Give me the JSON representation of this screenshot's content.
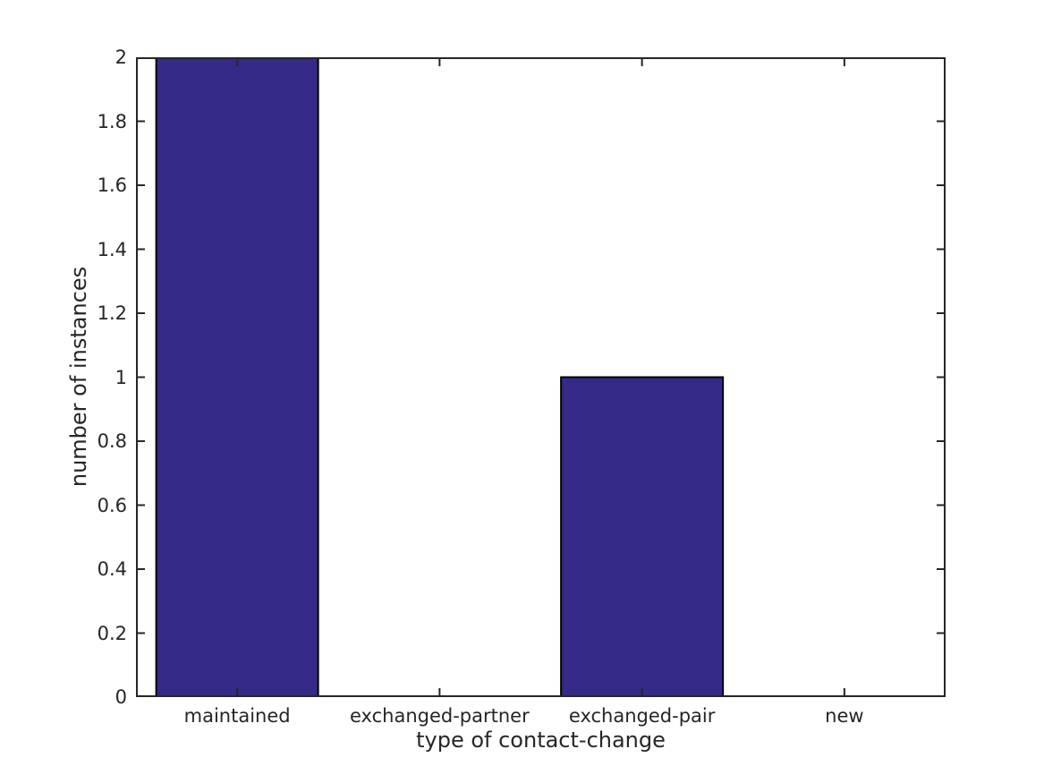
{
  "figure": {
    "background_color": "#ffffff",
    "axis_color": "#262626",
    "text_color": "#262626"
  },
  "chart_data": {
    "type": "bar",
    "title": "",
    "xlabel": "type of contact-change",
    "ylabel": "number of instances",
    "categories": [
      "maintained",
      "exchanged-partner",
      "exchanged-pair",
      "new"
    ],
    "values": [
      2,
      0,
      1,
      0
    ],
    "ylim": [
      0,
      2
    ],
    "yticks": [
      0,
      0.2,
      0.4,
      0.6,
      0.8,
      1,
      1.2,
      1.4,
      1.6,
      1.8,
      2
    ],
    "ytick_labels": [
      "0",
      "0.2",
      "0.4",
      "0.6",
      "0.8",
      "1",
      "1.2",
      "1.4",
      "1.6",
      "1.8",
      "2"
    ],
    "bar_color": "#352A87",
    "bar_edge_color": "#000000",
    "bar_width_fraction": 0.8,
    "grid": false,
    "legend": null,
    "box": true,
    "tick_direction": "in"
  }
}
